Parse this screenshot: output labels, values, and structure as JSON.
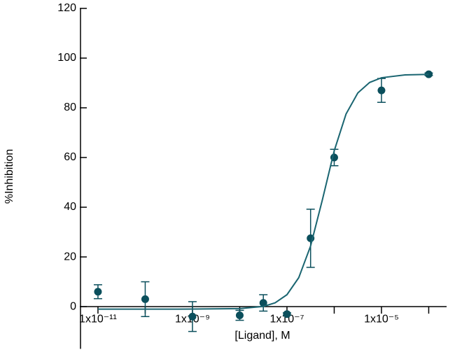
{
  "chart_data": {
    "type": "dose-response",
    "xlabel": "[Ligand], M",
    "ylabel": "%Inhibition",
    "xscale": "log",
    "xlim": [
      4.27e-12,
      0.000239
    ],
    "ylim": [
      -17,
      120
    ],
    "xticks": [
      {
        "value": 1e-11,
        "label": "1x10⁻¹¹"
      },
      {
        "value": 1e-09,
        "label": "1x10⁻⁹"
      },
      {
        "value": 1e-07,
        "label": "1x10⁻⁷"
      },
      {
        "value": 1e-05,
        "label": "1x10⁻⁵"
      }
    ],
    "xminor_ticks": [
      1e-10,
      1e-08,
      1e-06,
      0.0001
    ],
    "yticks": [
      0,
      20,
      40,
      60,
      80,
      100,
      120
    ],
    "series": [
      {
        "kind": "points",
        "color": "#0b4f5c",
        "x": [
          1e-11,
          1e-10,
          1e-09,
          1e-08,
          3.162e-08,
          1e-07,
          3.162e-07,
          1e-06,
          1e-05,
          0.0001
        ],
        "values": [
          6,
          3,
          -4,
          -3.5,
          1.5,
          -3,
          27.5,
          60,
          87,
          93.5
        ],
        "errors": [
          2.8,
          7,
          6,
          2,
          3.3,
          0.5,
          11.7,
          3.3,
          4.8,
          0.5
        ]
      },
      {
        "kind": "fit",
        "color": "#1a6571",
        "x": [
          1e-11,
          1e-10,
          1e-09,
          1e-08,
          3.162e-08,
          5.62e-08,
          1e-07,
          1.778e-07,
          3.162e-07,
          5.62e-07,
          1e-06,
          1.778e-06,
          3.162e-06,
          5.62e-06,
          1e-05,
          3.162e-05,
          0.0001
        ],
        "values": [
          -1,
          -1,
          -0.99,
          -0.8,
          0.09,
          1.53,
          4.8,
          11.67,
          24.4,
          43,
          62.7,
          77.5,
          86,
          90.2,
          92.1,
          93.24,
          93.45
        ]
      }
    ]
  }
}
